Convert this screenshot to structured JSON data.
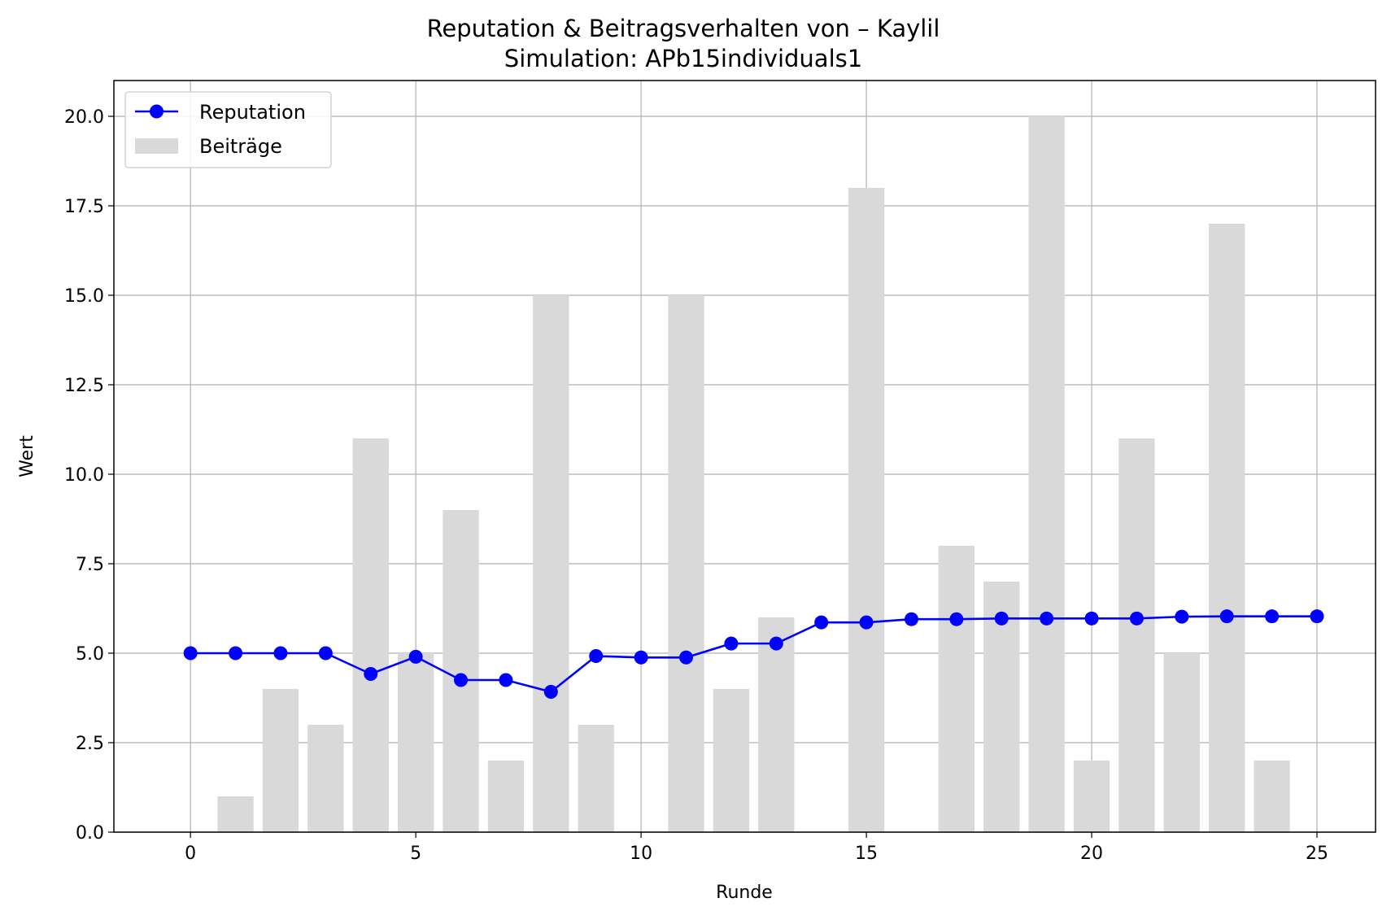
{
  "chart_data": {
    "type": "bar+line",
    "title": "Reputation & Beitragsverhalten von – Kaylil",
    "subtitle": "Simulation: APb15individuals1",
    "xlabel": "Runde",
    "ylabel": "Wert",
    "xlim": [
      -1.7,
      26.3
    ],
    "ylim": [
      0,
      21
    ],
    "xticks": [
      0,
      5,
      10,
      15,
      20,
      25
    ],
    "yticks": [
      0.0,
      2.5,
      5.0,
      7.5,
      10.0,
      12.5,
      15.0,
      17.5,
      20.0
    ],
    "xtick_labels": [
      "0",
      "5",
      "10",
      "15",
      "20",
      "25"
    ],
    "ytick_labels": [
      "0.0",
      "2.5",
      "5.0",
      "7.5",
      "10.0",
      "12.5",
      "15.0",
      "17.5",
      "20.0"
    ],
    "grid": true,
    "legend_position": "top-left",
    "bars": {
      "name": "Beiträge",
      "color": "#d9d9d9",
      "x": [
        0,
        1,
        2,
        3,
        4,
        5,
        6,
        7,
        8,
        9,
        10,
        11,
        12,
        13,
        14,
        15,
        16,
        17,
        18,
        19,
        20,
        21,
        22,
        23,
        24
      ],
      "values": [
        0,
        1,
        4,
        3,
        11,
        5,
        9,
        2,
        15,
        3,
        0,
        15,
        4,
        6,
        0,
        18,
        0,
        8,
        7,
        20,
        2,
        11,
        5,
        17,
        2
      ]
    },
    "line": {
      "name": "Reputation",
      "color": "#0000ff",
      "marker": "circle",
      "x": [
        0,
        1,
        2,
        3,
        4,
        5,
        6,
        7,
        8,
        9,
        10,
        11,
        12,
        13,
        14,
        15,
        16,
        17,
        18,
        19,
        20,
        21,
        22,
        23,
        24,
        25
      ],
      "values": [
        5.0,
        5.0,
        5.0,
        5.0,
        4.42,
        4.9,
        4.25,
        4.25,
        3.92,
        4.92,
        4.88,
        4.88,
        5.27,
        5.27,
        5.86,
        5.86,
        5.95,
        5.95,
        5.97,
        5.97,
        5.97,
        5.97,
        6.02,
        6.03,
        6.03,
        6.03
      ]
    }
  }
}
